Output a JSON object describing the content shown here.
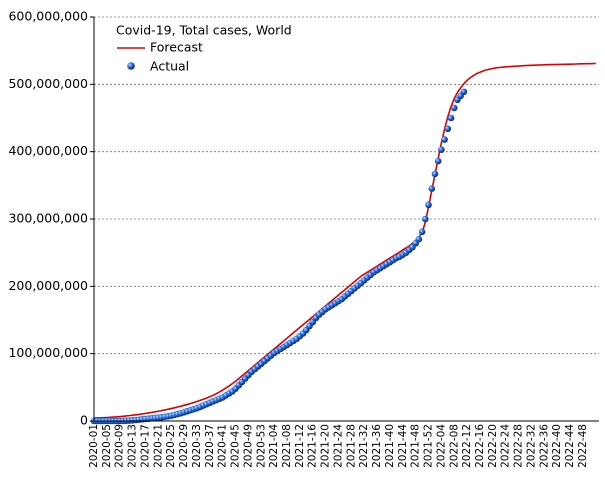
{
  "chart_data": {
    "type": "line",
    "title": "Covid-19, Total cases, World",
    "categories": [
      "2020-01",
      null,
      null,
      null,
      "2020-05",
      null,
      null,
      null,
      "2020-09",
      null,
      null,
      null,
      "2020-13",
      null,
      null,
      null,
      "2020-17",
      null,
      null,
      null,
      "2020-21",
      null,
      null,
      null,
      "2020-25",
      null,
      null,
      null,
      "2020-29",
      null,
      null,
      null,
      "2020-33",
      null,
      null,
      null,
      "2020-37",
      null,
      null,
      null,
      "2020-41",
      null,
      null,
      null,
      "2020-45",
      null,
      null,
      null,
      "2020-49",
      null,
      null,
      null,
      "2020-53",
      null,
      null,
      null,
      "2021-04",
      null,
      null,
      null,
      "2021-08",
      null,
      null,
      null,
      "2021-12",
      null,
      null,
      null,
      "2021-16",
      null,
      null,
      null,
      "2021-20",
      null,
      null,
      null,
      "2021-24",
      null,
      null,
      null,
      "2021-28",
      null,
      null,
      null,
      "2021-32",
      null,
      null,
      null,
      "2021-36",
      null,
      null,
      null,
      "2021-40",
      null,
      null,
      null,
      "2021-44",
      null,
      null,
      null,
      "2021-48",
      null,
      null,
      null,
      "2021-52",
      null,
      null,
      null,
      "2022-04",
      null,
      null,
      null,
      "2022-08",
      null,
      null,
      null,
      "2022-12",
      null,
      null,
      null,
      "2022-16",
      null,
      null,
      null,
      "2022-20",
      null,
      null,
      null,
      "2022-24",
      null,
      null,
      null,
      "2022-28",
      null,
      null,
      null,
      "2022-32",
      null,
      null,
      null,
      "2022-36",
      null,
      null,
      null,
      "2022-40",
      null,
      null,
      null,
      "2022-44",
      null,
      null,
      null,
      "2022-48",
      null,
      null,
      null,
      null
    ],
    "series": [
      {
        "name": "Forecast",
        "color": "#e00000",
        "style": "line",
        "values": [
          4500000,
          4600000,
          4800000,
          5000000,
          5200000,
          5500000,
          5800000,
          6100000,
          6500000,
          7000000,
          7500000,
          8000000,
          8600000,
          9200000,
          9800000,
          10500000,
          11200000,
          12000000,
          12800000,
          13600000,
          14500000,
          15400000,
          16400000,
          17400000,
          18500000,
          19600000,
          20800000,
          22000000,
          23300000,
          24600000,
          26000000,
          27500000,
          29000000,
          30600000,
          32300000,
          34000000,
          36000000,
          38000000,
          40500000,
          43000000,
          46000000,
          49000000,
          52000000,
          55500000,
          59000000,
          63000000,
          67000000,
          71000000,
          75000000,
          79000000,
          83000000,
          87000000,
          91000000,
          95000000,
          99000000,
          103000000,
          107000000,
          111000000,
          115000000,
          119000000,
          123000000,
          127000000,
          131000000,
          135000000,
          139000000,
          143000000,
          147000000,
          151000000,
          155000000,
          159000000,
          163000000,
          167000000,
          171000000,
          175000000,
          179000000,
          183000000,
          187000000,
          191000000,
          195000000,
          199000000,
          203000000,
          207000000,
          211000000,
          215000000,
          218000000,
          221000000,
          224000000,
          227000000,
          230000000,
          233000000,
          236000000,
          239000000,
          242000000,
          245000000,
          248000000,
          251000000,
          254000000,
          257000000,
          260000000,
          264000000,
          268000000,
          273000000,
          280000000,
          295000000,
          318000000,
          342000000,
          366000000,
          390000000,
          413000000,
          434000000,
          452000000,
          467000000,
          479000000,
          488000000,
          495000000,
          501000000,
          506000000,
          510000000,
          513000000,
          516000000,
          518000000,
          520000000,
          521500000,
          522500000,
          523500000,
          524500000,
          525000000,
          525500000,
          526000000,
          526300000,
          526600000,
          526900000,
          527200000,
          527500000,
          527800000,
          528000000,
          528200000,
          528400000,
          528600000,
          528800000,
          529000000,
          529200000,
          529300000,
          529400000,
          529500000,
          529600000,
          529700000,
          529800000,
          529900000,
          530000000,
          530200000,
          530400000,
          530500000,
          530600000,
          530700000,
          530800000,
          531000000
        ]
      },
      {
        "name": "Actual",
        "color": "#1f5fd0",
        "style": "dots",
        "values": [
          0,
          0,
          0,
          100000,
          100000,
          100000,
          100000,
          100000,
          200000,
          300000,
          400000,
          700000,
          1000000,
          1500000,
          2000000,
          2500000,
          3000000,
          3500000,
          4000000,
          4500000,
          5000000,
          5600000,
          6300000,
          7000000,
          8000000,
          9000000,
          10300000,
          11500000,
          13000000,
          14500000,
          16000000,
          17500000,
          19000000,
          21000000,
          23000000,
          25000000,
          27000000,
          29000000,
          31000000,
          33000000,
          35000000,
          38000000,
          41000000,
          44000000,
          48000000,
          53000000,
          58000000,
          63000000,
          68000000,
          73000000,
          77000000,
          81000000,
          85000000,
          89000000,
          93000000,
          97000000,
          101000000,
          104000000,
          107000000,
          110000000,
          113000000,
          116000000,
          119000000,
          122000000,
          126000000,
          130000000,
          135000000,
          141000000,
          147000000,
          153000000,
          158000000,
          162000000,
          166000000,
          169000000,
          172000000,
          175000000,
          178000000,
          181000000,
          185000000,
          189000000,
          193000000,
          197000000,
          201000000,
          205000000,
          209000000,
          213000000,
          217000000,
          221000000,
          224000000,
          227000000,
          230000000,
          233000000,
          236000000,
          239000000,
          242000000,
          244000000,
          247000000,
          250000000,
          254000000,
          258000000,
          264000000,
          270000000,
          281000000,
          300000000,
          321000000,
          345000000,
          367000000,
          386000000,
          403000000,
          418000000,
          434000000,
          450000000,
          465000000,
          477000000,
          483000000,
          489000000,
          null,
          null,
          null,
          null,
          null,
          null,
          null,
          null,
          null,
          null,
          null,
          null,
          null,
          null,
          null,
          null,
          null,
          null,
          null,
          null,
          null,
          null,
          null,
          null,
          null,
          null,
          null,
          null,
          null,
          null,
          null,
          null,
          null,
          null,
          null,
          null,
          null,
          null,
          null,
          null,
          null
        ]
      }
    ],
    "ylim": [
      0,
      600000000
    ],
    "yticks": [
      0,
      {
        "value": 100000000,
        "label": "100,000,000"
      },
      {
        "value": 200000000,
        "label": "200,000,000"
      },
      {
        "value": 300000000,
        "label": "300,000,000"
      },
      {
        "value": 400000000,
        "label": "400,000,000"
      },
      {
        "value": 500000000,
        "label": "500,000,000"
      },
      {
        "value": 600000000,
        "label": "600,000,000"
      }
    ],
    "grid": true
  }
}
